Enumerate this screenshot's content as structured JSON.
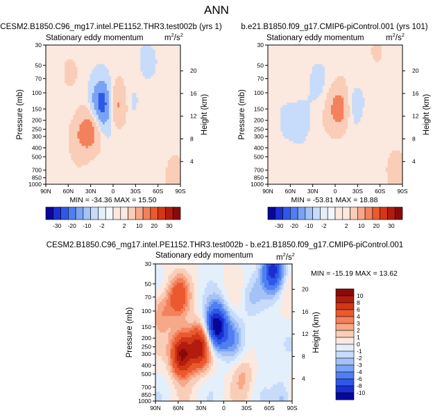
{
  "figure": {
    "title": "ANN"
  },
  "chart_data": [
    {
      "type": "heatmap",
      "title": "CESM2.B1850.C96_mg17.intel.PE1152.THR3.test002b (yrs 1)",
      "subtitle": "Stationary eddy momentum",
      "units": {
        "base": "m",
        "exp": "2",
        "sep": "/",
        "base2": "s",
        "exp2": "2"
      },
      "xlabel": "",
      "ylabel": "Pressure (mb)",
      "ylabel_right": "Height (km)",
      "xlim": [
        90,
        -90
      ],
      "xticks": [
        {
          "v": 90,
          "label": "90N"
        },
        {
          "v": 60,
          "label": "60N"
        },
        {
          "v": 30,
          "label": "30N"
        },
        {
          "v": 0,
          "label": "0"
        },
        {
          "v": -30,
          "label": "30S"
        },
        {
          "v": -60,
          "label": "60S"
        },
        {
          "v": -90,
          "label": "90S"
        }
      ],
      "ylim": [
        1000,
        30
      ],
      "yticks": [
        30,
        50,
        70,
        100,
        150,
        200,
        250,
        300,
        400,
        500,
        700,
        850,
        1000
      ],
      "height_ticks": [
        4,
        8,
        12,
        16,
        20
      ],
      "stats": "MIN = -34.36   MAX =  15.50",
      "contour_levels": [
        -30,
        -20,
        -10,
        -2,
        2,
        10,
        20,
        30
      ],
      "features": [
        {
          "lat": 60,
          "p": 60,
          "v": 2
        },
        {
          "lat": 45,
          "p": 300,
          "v": 8
        },
        {
          "lat": 30,
          "p": 250,
          "v": 14
        },
        {
          "lat": 15,
          "p": 130,
          "v": -26
        },
        {
          "lat": 8,
          "p": 200,
          "v": -5
        },
        {
          "lat": -5,
          "p": 140,
          "v": 15
        },
        {
          "lat": -22,
          "p": 120,
          "v": -4
        },
        {
          "lat": -45,
          "p": 40,
          "v": -3
        },
        {
          "lat": -68,
          "p": 400,
          "v": -2
        },
        {
          "lat": -80,
          "p": 700,
          "v": 4
        }
      ]
    },
    {
      "type": "heatmap",
      "title": "b.e21.B1850.f09_g17.CMIP6-piControl.001 (yrs 101)",
      "subtitle": "Stationary eddy momentum",
      "units": {
        "base": "m",
        "exp": "2",
        "sep": "/",
        "base2": "s",
        "exp2": "2"
      },
      "xlabel": "",
      "ylabel": "Pressure (mb)",
      "ylabel_right": "Height (km)",
      "xlim": [
        90,
        -90
      ],
      "xticks": [
        {
          "v": 90,
          "label": "90N"
        },
        {
          "v": 60,
          "label": "60N"
        },
        {
          "v": 30,
          "label": "30N"
        },
        {
          "v": 0,
          "label": "0"
        },
        {
          "v": -30,
          "label": "30S"
        },
        {
          "v": -60,
          "label": "60S"
        },
        {
          "v": -90,
          "label": "90S"
        }
      ],
      "ylim": [
        1000,
        30
      ],
      "yticks": [
        30,
        50,
        70,
        100,
        150,
        200,
        250,
        300,
        400,
        500,
        700,
        850,
        1000
      ],
      "height_ticks": [
        4,
        8,
        12,
        16,
        20
      ],
      "stats": "MIN = -53.81   MAX =  18.88",
      "contour_levels": [
        -30,
        -20,
        -10,
        -2,
        2,
        10,
        20,
        30
      ],
      "features": [
        {
          "lat": 68,
          "p": 200,
          "v": -3
        },
        {
          "lat": 45,
          "p": 200,
          "v": -4
        },
        {
          "lat": 25,
          "p": 80,
          "v": -3
        },
        {
          "lat": -5,
          "p": 150,
          "v": 16
        },
        {
          "lat": -25,
          "p": 130,
          "v": -5
        },
        {
          "lat": -50,
          "p": 300,
          "v": -2
        },
        {
          "lat": -55,
          "p": 40,
          "v": 3
        },
        {
          "lat": -82,
          "p": 700,
          "v": 5
        }
      ]
    },
    {
      "type": "heatmap",
      "title": "CESM2.B1850.C96_mg17.intel.PE1152.THR3.test002b - b.e21.B1850.f09_g17.CMIP6-piControl.001",
      "subtitle": "Stationary eddy momentum",
      "units": {
        "base": "m",
        "exp": "2",
        "sep": "/",
        "base2": "s",
        "exp2": "2"
      },
      "xlabel": "",
      "ylabel": "Pressure (mb)",
      "ylabel_right": "Height (km)",
      "xlim": [
        90,
        -90
      ],
      "xticks": [
        {
          "v": 90,
          "label": "90N"
        },
        {
          "v": 60,
          "label": "60N"
        },
        {
          "v": 30,
          "label": "30N"
        },
        {
          "v": 0,
          "label": "0"
        },
        {
          "v": -30,
          "label": "30S"
        },
        {
          "v": -60,
          "label": "60S"
        },
        {
          "v": -90,
          "label": "90S"
        }
      ],
      "ylim": [
        1000,
        30
      ],
      "yticks": [
        30,
        50,
        70,
        100,
        150,
        200,
        250,
        300,
        400,
        500,
        700,
        850,
        1000
      ],
      "height_ticks": [
        4,
        8,
        12,
        16,
        20
      ],
      "stats": "MIN = -15.19   MAX =  13.62",
      "contour_levels": [
        -10,
        -8,
        -6,
        -4,
        -3,
        -2,
        -1,
        0,
        1,
        2,
        3,
        4,
        6,
        8,
        10
      ],
      "features": [
        {
          "lat": 82,
          "p": 100,
          "v": 3
        },
        {
          "lat": 60,
          "p": 70,
          "v": 5
        },
        {
          "lat": 55,
          "p": 300,
          "v": 11
        },
        {
          "lat": 32,
          "p": 250,
          "v": 9
        },
        {
          "lat": 10,
          "p": 150,
          "v": -12
        },
        {
          "lat": -10,
          "p": 200,
          "v": -3
        },
        {
          "lat": -25,
          "p": 500,
          "v": 2
        },
        {
          "lat": -35,
          "p": 70,
          "v": -2
        },
        {
          "lat": -65,
          "p": 35,
          "v": -9
        },
        {
          "lat": -55,
          "p": 250,
          "v": -2
        },
        {
          "lat": -82,
          "p": 950,
          "v": -5
        },
        {
          "lat": -88,
          "p": 900,
          "v": 3
        }
      ]
    }
  ],
  "colorbars": {
    "top": {
      "labels": [
        "-30",
        "-20",
        "-10",
        "-2",
        "2",
        "10",
        "20",
        "30"
      ]
    },
    "diff": {
      "labels": [
        "10",
        "8",
        "6",
        "4",
        "3",
        "2",
        "1",
        "0",
        "-1",
        "-2",
        "-3",
        "-4",
        "-6",
        "-8",
        "-10"
      ]
    }
  },
  "colors": {
    "blue": [
      "#08079a",
      "#1a2fd0",
      "#2f58e8",
      "#4f7ff2",
      "#7aa3f4",
      "#a4c2f6",
      "#c7dbfa",
      "#e4effc"
    ],
    "red": [
      "#fbe8de",
      "#f9cdb7",
      "#f6a888",
      "#f3815c",
      "#ea5a2e",
      "#d23717",
      "#b21c0e",
      "#8a0a0a"
    ]
  }
}
